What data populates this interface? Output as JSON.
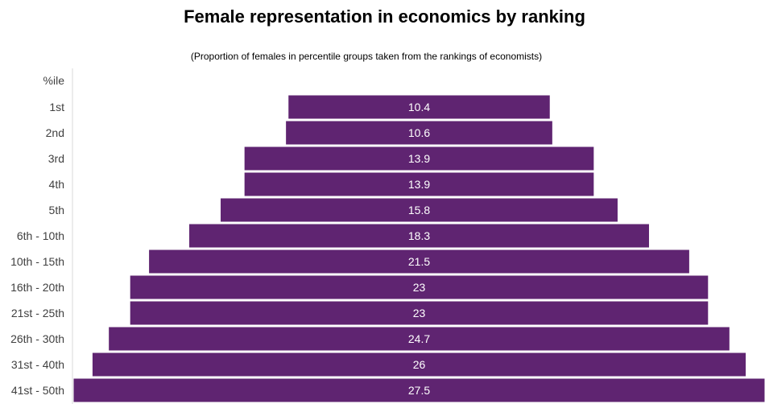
{
  "title": "Female representation in economics by ranking",
  "subtitle": "(Proportion of females  in percentile groups taken from the rankings of economists)",
  "chart_data": {
    "type": "bar",
    "orientation": "horizontal-centered",
    "title": "Female representation in economics by ranking",
    "subtitle": "(Proportion of females  in percentile groups taken from the rankings of economists)",
    "y_header": "%ile",
    "categories": [
      "1st",
      "2nd",
      "3rd",
      "4th",
      "5th",
      "6th - 10th",
      "10th - 15th",
      "16th - 20th",
      "21st - 25th",
      "26th - 30th",
      "31st - 40th",
      "41st - 50th"
    ],
    "values": [
      10.4,
      10.6,
      13.9,
      13.9,
      15.8,
      18.3,
      21.5,
      23,
      23,
      24.7,
      26,
      27.5
    ],
    "labels": [
      "10.4",
      "10.6",
      "13.9",
      "13.9",
      "15.8",
      "18.3",
      "21.5",
      "23",
      "23",
      "24.7",
      "26",
      "27.5"
    ],
    "xlim": [
      0,
      27.5
    ],
    "grid": false,
    "legend": "none",
    "bar_color": "#5f2471",
    "label_color": "#ffffff",
    "axis_label_color": "#404040"
  }
}
